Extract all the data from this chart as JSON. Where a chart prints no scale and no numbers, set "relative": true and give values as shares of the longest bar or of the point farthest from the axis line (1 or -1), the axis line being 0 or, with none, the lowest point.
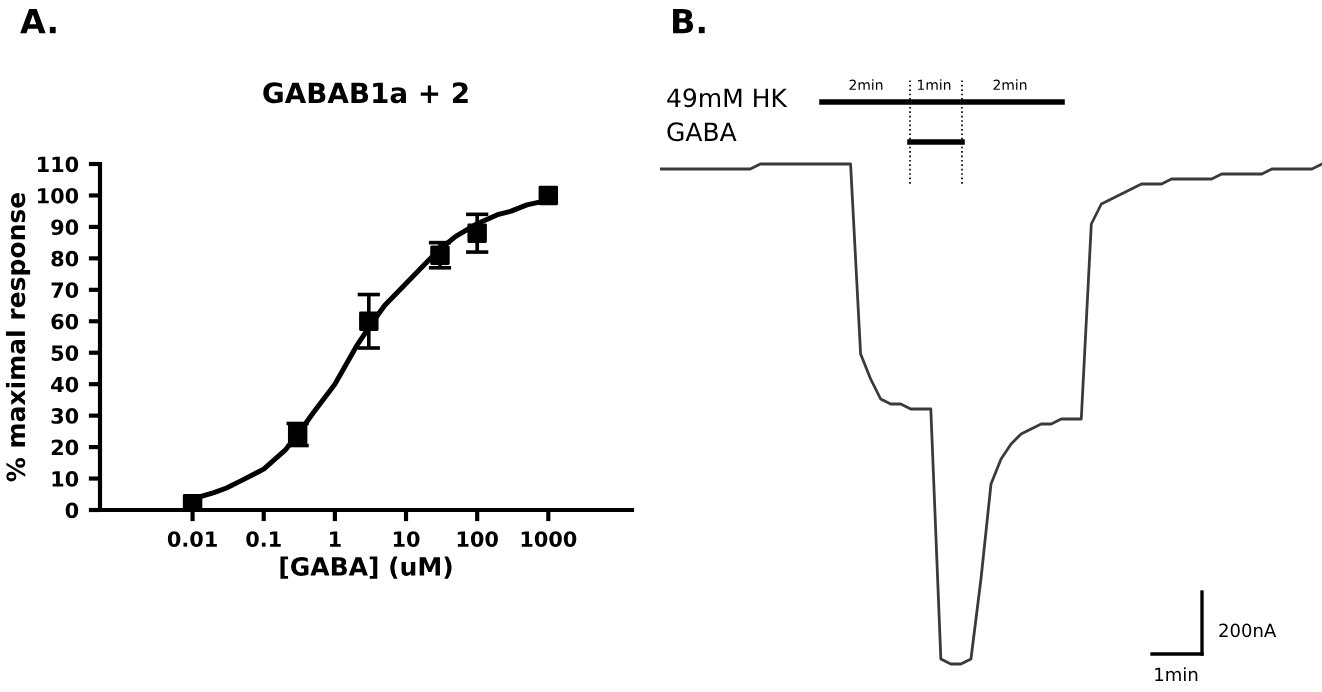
{
  "chart_data": [
    {
      "type": "scatter",
      "title": "GABAB1a + 2",
      "xlabel": "[GABA] (uM)",
      "ylabel": "% maximal response",
      "annotations": [
        "A."
      ],
      "log": "x",
      "xlim": [
        0.0005,
        15000
      ],
      "xticks": [
        0.01,
        0.1,
        1,
        10,
        100,
        1000
      ],
      "ylim": [
        0,
        110
      ],
      "yticks": [
        0,
        10,
        20,
        30,
        40,
        50,
        60,
        70,
        80,
        90,
        100,
        110
      ],
      "grid": false,
      "legend": false,
      "series": [
        {
          "color": "#000000",
          "marker": "square",
          "x": [
            0.01,
            0.3,
            3,
            30,
            100,
            1000
          ],
          "values": [
            2,
            24,
            60,
            81,
            88,
            100
          ],
          "errors": [
            null,
            3.5,
            8.5,
            4,
            6,
            null
          ]
        },
        {
          "type": "line",
          "color": "#000000",
          "marker": "none",
          "line_style": "solid",
          "x": [
            0.01,
            0.02,
            0.03,
            0.05,
            0.1,
            0.2,
            0.3,
            0.5,
            1,
            2,
            3,
            5,
            10,
            20,
            30,
            50,
            100,
            200,
            300,
            500,
            1000
          ],
          "values": [
            3.5,
            5.5,
            7,
            9.5,
            13,
            19,
            24,
            31,
            40,
            52,
            58,
            65,
            72,
            79,
            83,
            87,
            91,
            94,
            95,
            97,
            98.5
          ]
        }
      ]
    },
    {
      "type": "line",
      "relative": true,
      "annotations": [
        "B.",
        "49mM HK",
        "GABA",
        "2min",
        "1min",
        "2min",
        "200nA",
        "1min"
      ],
      "legend": false,
      "categories": [
        null,
        null,
        null,
        null,
        null,
        null,
        null,
        null,
        null,
        null,
        null,
        null,
        null,
        null,
        null,
        null,
        null,
        null,
        null,
        null,
        null,
        null,
        null,
        null,
        null,
        null,
        null,
        null,
        null,
        null,
        null,
        null,
        null,
        null,
        null,
        null,
        null,
        null,
        null,
        null,
        null,
        null,
        null,
        null,
        null,
        null,
        null,
        null,
        null,
        null,
        null,
        null,
        null,
        null,
        null,
        null,
        null,
        null,
        null,
        null,
        null,
        null,
        null,
        null,
        null,
        null,
        null
      ],
      "series": [
        {
          "color": "#3a3a3a",
          "line_style": "solid",
          "marker": "none",
          "values": [
            0.99,
            0.99,
            0.99,
            0.99,
            0.99,
            0.99,
            0.99,
            0.99,
            0.99,
            0.99,
            1.0,
            1.0,
            1.0,
            1.0,
            1.0,
            1.0,
            1.0,
            1.0,
            1.0,
            1.0,
            0.62,
            0.57,
            0.53,
            0.52,
            0.52,
            0.51,
            0.51,
            0.51,
            0.01,
            0,
            0,
            0.01,
            0.17,
            0.36,
            0.41,
            0.44,
            0.46,
            0.47,
            0.48,
            0.48,
            0.49,
            0.49,
            0.49,
            0.88,
            0.92,
            0.93,
            0.94,
            0.95,
            0.96,
            0.96,
            0.96,
            0.97,
            0.97,
            0.97,
            0.97,
            0.97,
            0.98,
            0.98,
            0.98,
            0.98,
            0.98,
            0.99,
            0.99,
            0.99,
            0.99,
            0.99,
            1.0
          ]
        }
      ]
    }
  ]
}
